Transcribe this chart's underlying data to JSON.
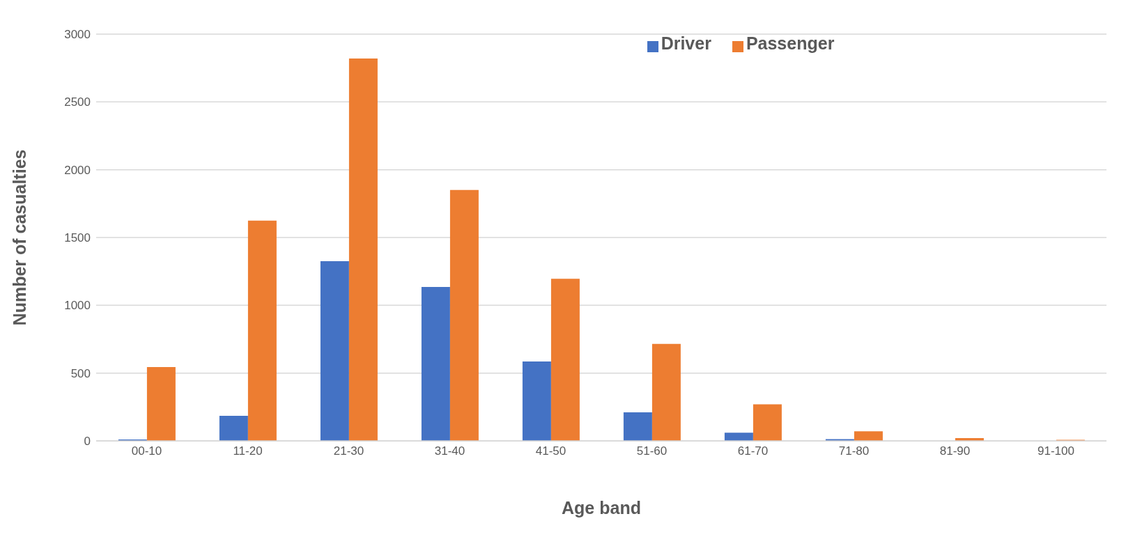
{
  "chart_data": {
    "type": "bar",
    "xlabel": "Age band",
    "ylabel": "Number of casualties",
    "categories": [
      "00-10",
      "11-20",
      "21-30",
      "31-40",
      "41-50",
      "51-60",
      "61-70",
      "71-80",
      "81-90",
      "91-100"
    ],
    "series": [
      {
        "name": "Driver",
        "color": "#4472c4",
        "values": [
          10,
          185,
          1325,
          1135,
          585,
          210,
          60,
          13,
          0,
          0
        ]
      },
      {
        "name": "Passenger",
        "color": "#ed7d31",
        "values": [
          545,
          1625,
          2820,
          1850,
          1195,
          715,
          270,
          70,
          20,
          8
        ]
      }
    ],
    "ylim": [
      0,
      3000
    ],
    "yticks": [
      0,
      500,
      1000,
      1500,
      2000,
      2500,
      3000
    ],
    "grid": "y",
    "legend": "top"
  }
}
